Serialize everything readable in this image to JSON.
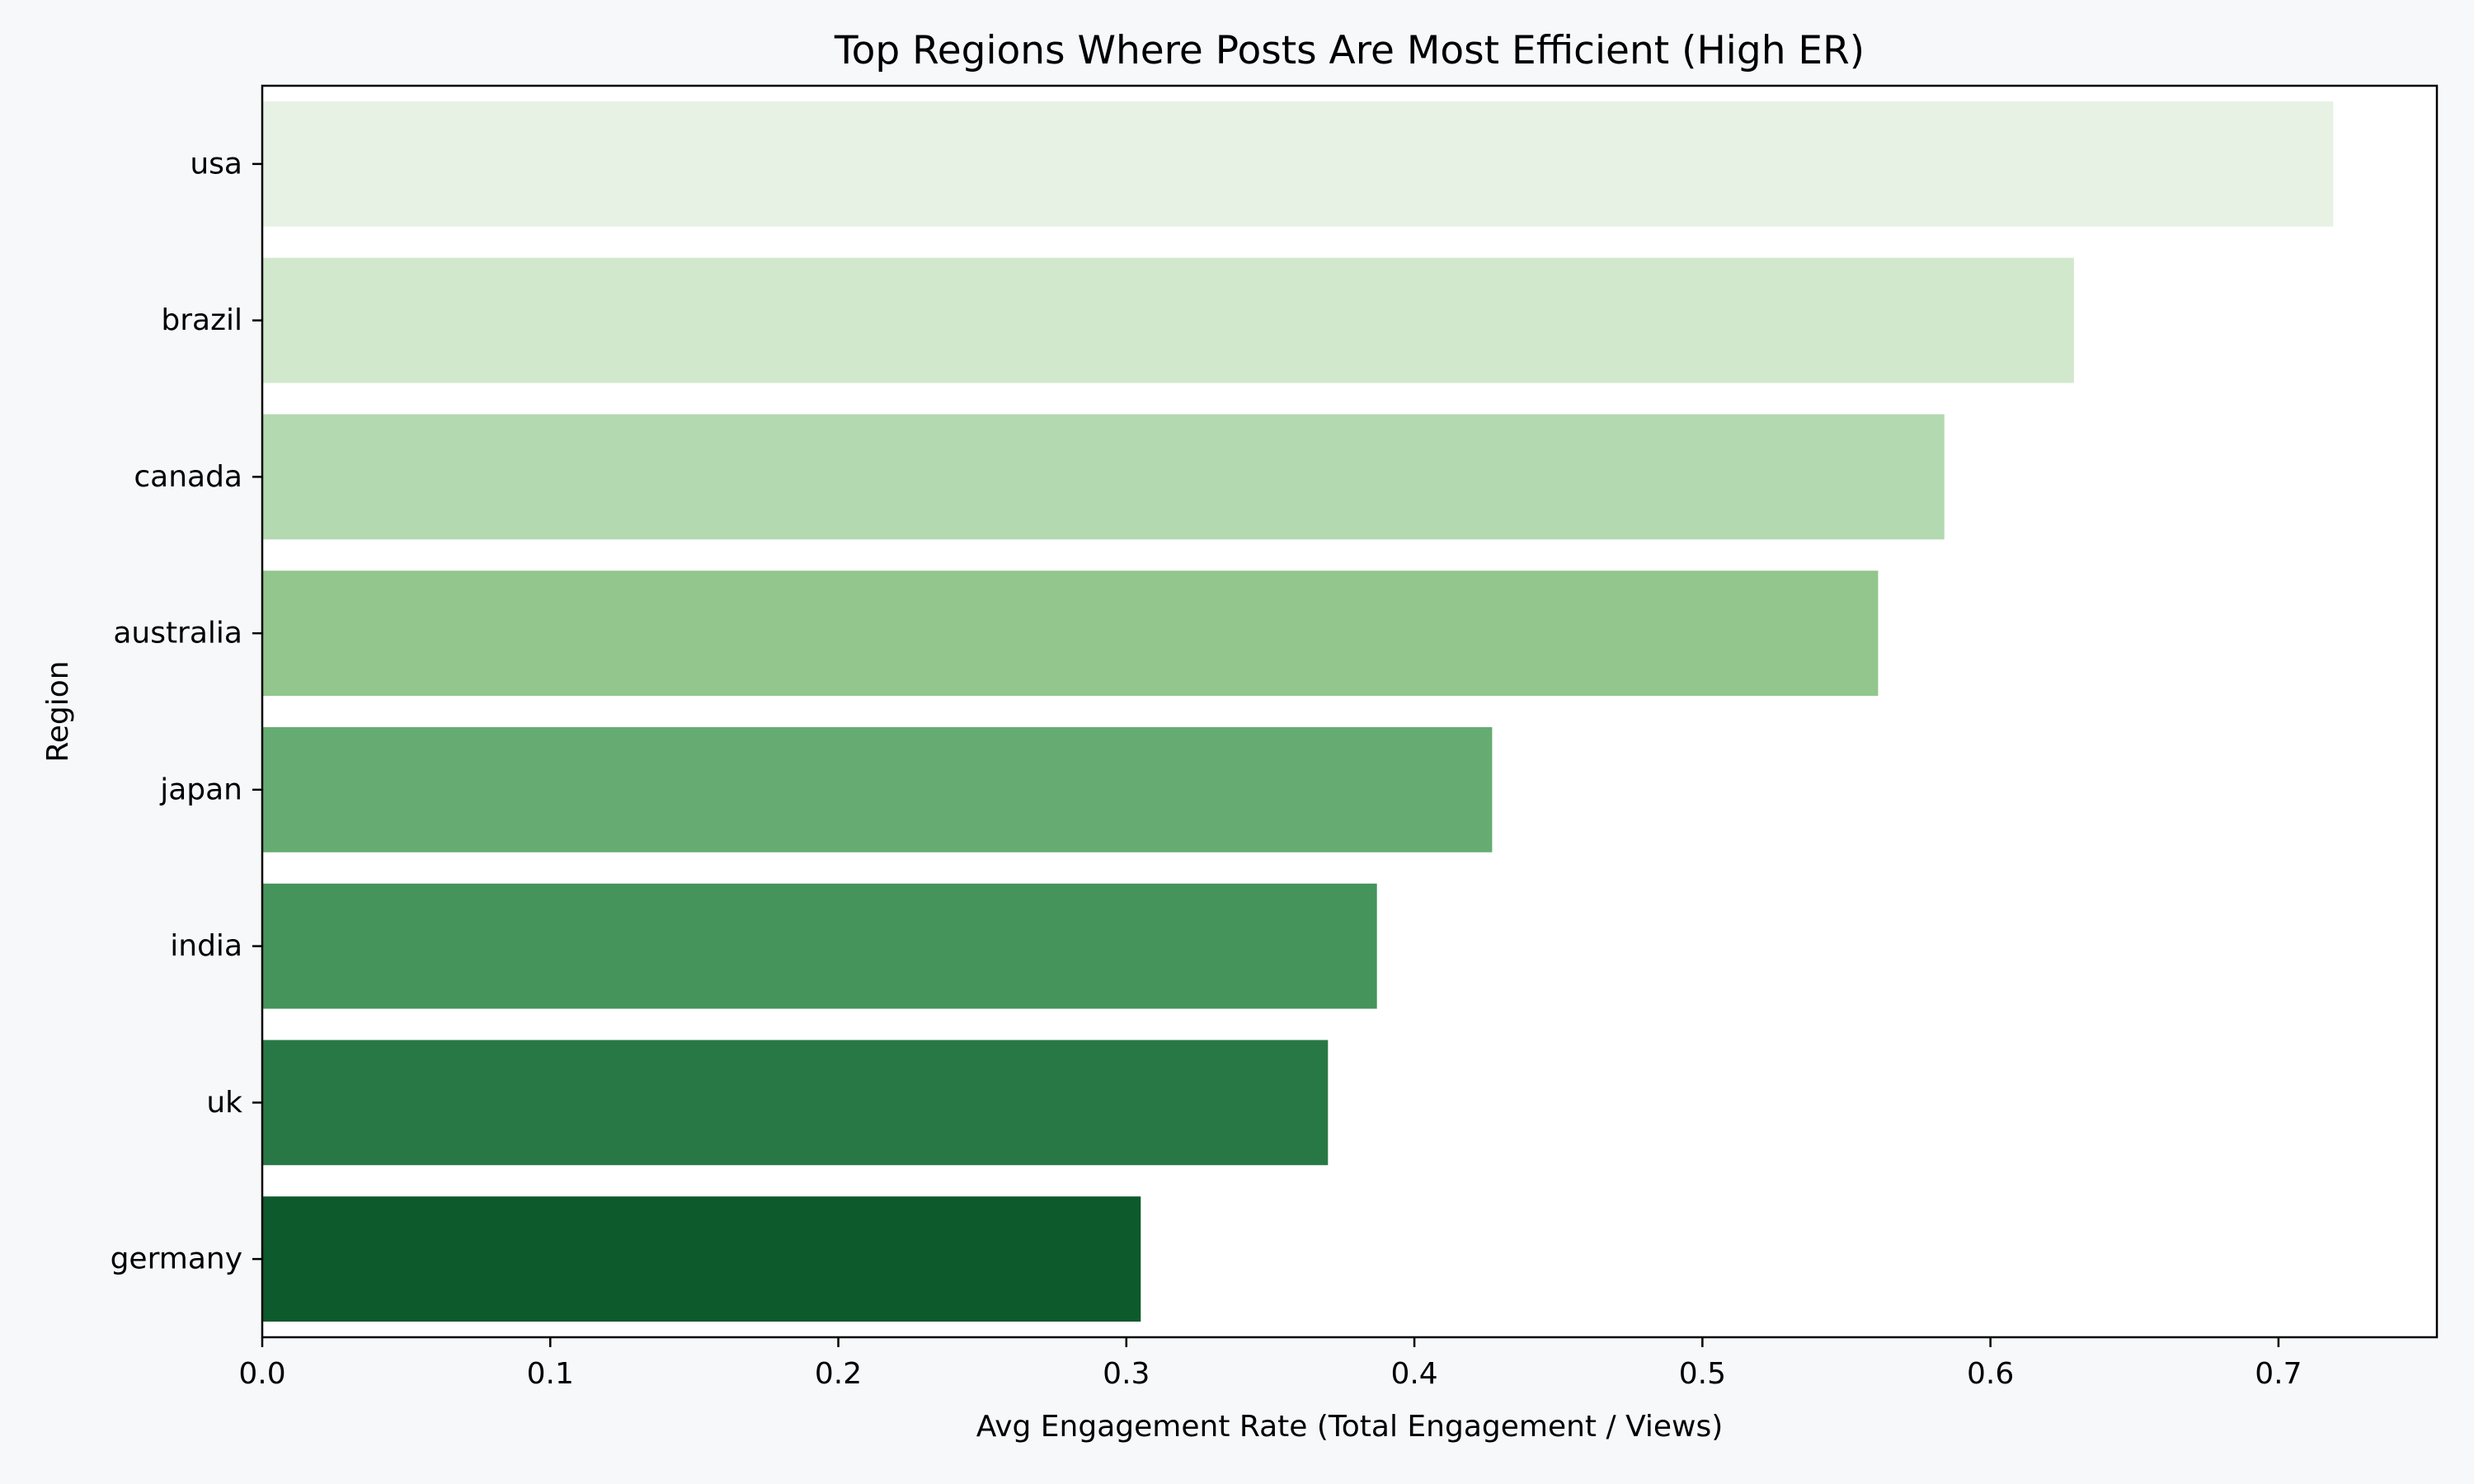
{
  "chart_data": {
    "type": "bar",
    "orientation": "horizontal",
    "title": "Top Regions Where Posts Are Most Efficient (High ER)",
    "xlabel": "Avg Engagement Rate (Total Engagement / Views)",
    "ylabel": "Region",
    "categories": [
      "usa",
      "brazil",
      "canada",
      "australia",
      "japan",
      "india",
      "uk",
      "germany"
    ],
    "values": [
      0.719,
      0.629,
      0.584,
      0.561,
      0.427,
      0.387,
      0.37,
      0.305
    ],
    "colors": [
      "#e7f2e4",
      "#d1e8cd",
      "#b3d9b0",
      "#92c68c",
      "#66ac72",
      "#44945b",
      "#287845",
      "#0d5a2d"
    ],
    "xlim": [
      0,
      0.755
    ],
    "xticks": [
      0.0,
      0.1,
      0.2,
      0.3,
      0.4,
      0.5,
      0.6,
      0.7
    ],
    "xtick_labels": [
      "0.0",
      "0.1",
      "0.2",
      "0.3",
      "0.4",
      "0.5",
      "0.6",
      "0.7"
    ],
    "grid": false,
    "legend": "none"
  }
}
